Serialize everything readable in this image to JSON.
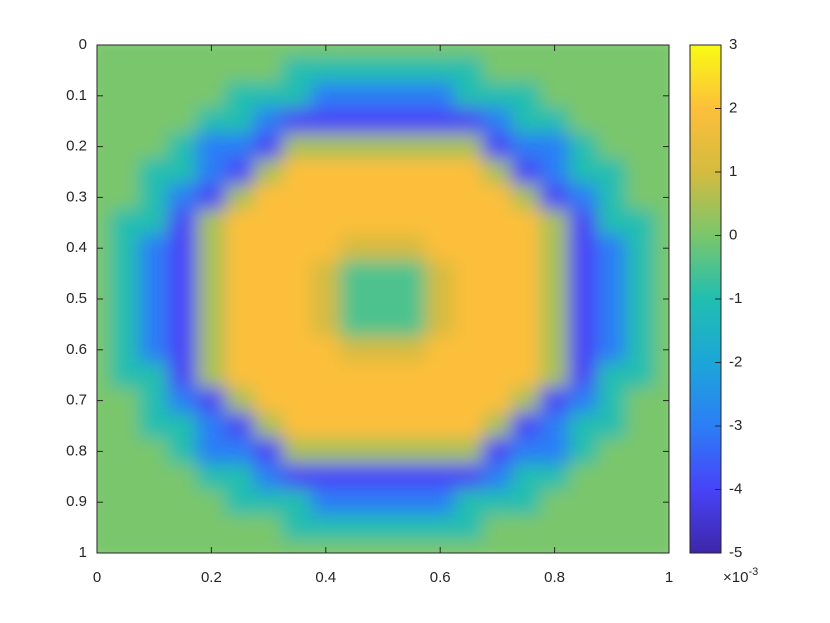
{
  "chart_data": {
    "type": "heatmap",
    "x": [
      0,
      0.05,
      0.1,
      0.15,
      0.2,
      0.25,
      0.3,
      0.35,
      0.4,
      0.45,
      0.5,
      0.55,
      0.6,
      0.65,
      0.7,
      0.75,
      0.8,
      0.85,
      0.9,
      0.95,
      1
    ],
    "y": [
      0,
      0.05,
      0.1,
      0.15,
      0.2,
      0.25,
      0.3,
      0.35,
      0.4,
      0.45,
      0.5,
      0.55,
      0.6,
      0.65,
      0.7,
      0.75,
      0.8,
      0.85,
      0.9,
      0.95,
      1
    ],
    "values": [
      [
        0,
        0,
        0,
        0,
        0,
        0,
        0,
        0,
        0,
        0,
        0,
        0,
        0,
        0,
        0,
        0,
        0,
        0,
        0,
        0,
        0
      ],
      [
        0,
        0,
        0,
        0,
        0,
        0,
        0,
        -1,
        -1,
        -1,
        -1,
        -1,
        -1,
        -1,
        0,
        0,
        0,
        0,
        0,
        0,
        0
      ],
      [
        0,
        0,
        0,
        0,
        0,
        -1,
        -1,
        -1,
        -3,
        -3,
        -3,
        -3,
        -3,
        -1,
        -1,
        -1,
        0,
        0,
        0,
        0,
        0
      ],
      [
        0,
        0,
        0,
        0,
        -1,
        -1,
        -3,
        -4,
        -4,
        -4,
        -4,
        -4,
        -4,
        -4,
        -3,
        -1,
        -1,
        0,
        0,
        0,
        0
      ],
      [
        0,
        0,
        0,
        -1,
        -3,
        -3,
        -4,
        0.5,
        0.5,
        0.5,
        0.5,
        0.5,
        0.5,
        0.5,
        -4,
        -3,
        -3,
        -1,
        0,
        0,
        0
      ],
      [
        0,
        0,
        -1,
        -1,
        -3,
        -4,
        0.5,
        2,
        2,
        2,
        2,
        2,
        2,
        2,
        0.5,
        -4,
        -3,
        -1,
        -1,
        0,
        0
      ],
      [
        0,
        0,
        -1,
        -3,
        -4,
        0.5,
        2,
        2,
        2,
        2,
        2,
        2,
        2,
        2,
        2,
        0.5,
        -4,
        -3,
        -1,
        0,
        0
      ],
      [
        0,
        -1,
        -1,
        -4,
        0.5,
        2,
        2,
        2,
        2,
        2,
        2,
        2,
        2,
        2,
        2,
        2,
        0.5,
        -4,
        -1,
        -1,
        0
      ],
      [
        0,
        -1,
        -3,
        -4,
        0.5,
        2,
        2,
        2,
        2,
        1,
        1,
        1,
        2,
        2,
        2,
        2,
        0.5,
        -4,
        -3,
        -1,
        0
      ],
      [
        0,
        -1,
        -3,
        -4,
        0.5,
        2,
        2,
        2,
        1,
        -0.5,
        -0.5,
        -0.5,
        1,
        2,
        2,
        2,
        0.5,
        -4,
        -3,
        -1,
        0
      ],
      [
        0,
        -1,
        -3,
        -4,
        0.5,
        2,
        2,
        2,
        1,
        -0.5,
        -0.5,
        -0.5,
        1,
        2,
        2,
        2,
        0.5,
        -4,
        -3,
        -1,
        0
      ],
      [
        0,
        -1,
        -3,
        -4,
        0.5,
        2,
        2,
        2,
        1,
        -0.5,
        -0.5,
        -0.5,
        1,
        2,
        2,
        2,
        0.5,
        -4,
        -3,
        -1,
        0
      ],
      [
        0,
        -1,
        -3,
        -4,
        0.5,
        2,
        2,
        2,
        2,
        1,
        1,
        1,
        2,
        2,
        2,
        2,
        0.5,
        -4,
        -3,
        -1,
        0
      ],
      [
        0,
        -1,
        -1,
        -4,
        0.5,
        2,
        2,
        2,
        2,
        2,
        2,
        2,
        2,
        2,
        2,
        2,
        0.5,
        -4,
        -1,
        -1,
        0
      ],
      [
        0,
        0,
        -1,
        -3,
        -4,
        0.5,
        2,
        2,
        2,
        2,
        2,
        2,
        2,
        2,
        2,
        0.5,
        -4,
        -3,
        -1,
        0,
        0
      ],
      [
        0,
        0,
        -1,
        -1,
        -3,
        -4,
        0.5,
        2,
        2,
        2,
        2,
        2,
        2,
        2,
        0.5,
        -4,
        -3,
        -1,
        -1,
        0,
        0
      ],
      [
        0,
        0,
        0,
        -1,
        -3,
        -3,
        -4,
        0.5,
        0.5,
        0.5,
        0.5,
        0.5,
        0.5,
        0.5,
        -4,
        -3,
        -3,
        -1,
        0,
        0,
        0
      ],
      [
        0,
        0,
        0,
        0,
        -1,
        -1,
        -3,
        -4,
        -4,
        -4,
        -4,
        -4,
        -4,
        -4,
        -3,
        -1,
        -1,
        0,
        0,
        0,
        0
      ],
      [
        0,
        0,
        0,
        0,
        0,
        -1,
        -1,
        -1,
        -3,
        -3,
        -3,
        -3,
        -3,
        -1,
        -1,
        -1,
        0,
        0,
        0,
        0,
        0
      ],
      [
        0,
        0,
        0,
        0,
        0,
        0,
        0,
        -1,
        -1,
        -1,
        -1,
        -1,
        -1,
        -1,
        0,
        0,
        0,
        0,
        0,
        0,
        0
      ],
      [
        0,
        0,
        0,
        0,
        0,
        0,
        0,
        0,
        0,
        0,
        0,
        0,
        0,
        0,
        0,
        0,
        0,
        0,
        0,
        0,
        0
      ]
    ],
    "xlim": [
      0,
      1
    ],
    "xticks": [
      0,
      0.2,
      0.4,
      0.6,
      0.8,
      1
    ],
    "ylim": [
      0,
      1
    ],
    "y_reversed": true,
    "yticks": [
      0,
      0.1,
      0.2,
      0.3,
      0.4,
      0.5,
      0.6,
      0.7,
      0.8,
      0.9,
      1
    ],
    "clim": [
      -5,
      3
    ],
    "cticks": [
      -5,
      -4,
      -3,
      -2,
      -1,
      0,
      1,
      2,
      3
    ],
    "colorbar_multiplier": {
      "base": "×10",
      "exponent": "-3"
    },
    "colormap": [
      "#3e26a8",
      "#4743f8",
      "#2c7ef6",
      "#1ca6d8",
      "#21beb0",
      "#7ac66c",
      "#d4bb3f",
      "#fdbf3b",
      "#f9fb15"
    ]
  }
}
